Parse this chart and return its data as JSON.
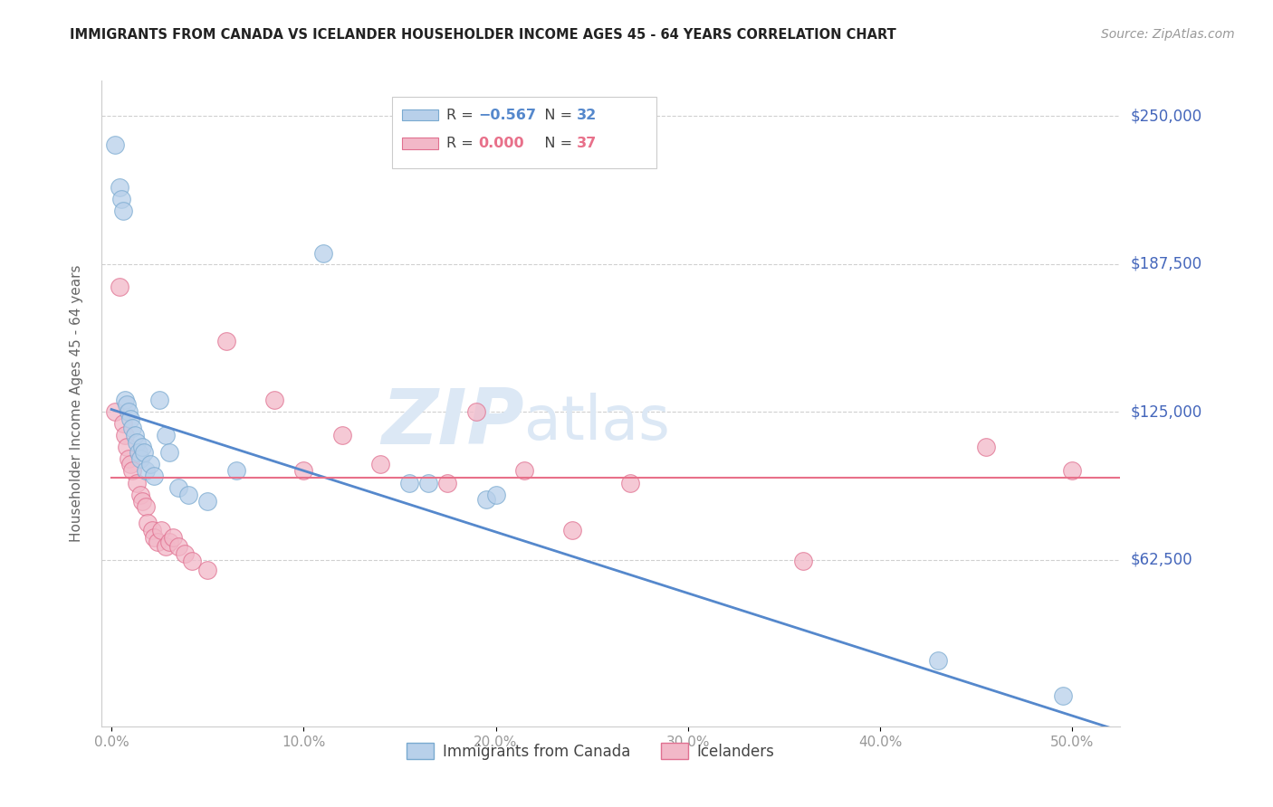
{
  "title": "IMMIGRANTS FROM CANADA VS ICELANDER HOUSEHOLDER INCOME AGES 45 - 64 YEARS CORRELATION CHART",
  "source": "Source: ZipAtlas.com",
  "xlabel_ticks": [
    "0.0%",
    "10.0%",
    "20.0%",
    "30.0%",
    "40.0%",
    "50.0%"
  ],
  "xlabel_vals": [
    0.0,
    0.1,
    0.2,
    0.3,
    0.4,
    0.5
  ],
  "ylabel_ticks": [
    "$250,000",
    "$187,500",
    "$125,000",
    "$62,500"
  ],
  "ylabel_vals": [
    250000,
    187500,
    125000,
    62500
  ],
  "ylim": [
    -8000,
    265000
  ],
  "xlim": [
    -0.005,
    0.525
  ],
  "canada_R": -0.567,
  "canada_N": 32,
  "iceland_R": 0.0,
  "iceland_N": 37,
  "canada_color": "#b8d0ea",
  "canada_edge": "#7aaad0",
  "iceland_color": "#f2b8c8",
  "iceland_edge": "#e07090",
  "line_canada_color": "#5588cc",
  "line_iceland_color": "#e8708a",
  "watermark_color": "#dce8f5",
  "grid_color": "#d0d0d0",
  "right_axis_color": "#4466bb",
  "title_color": "#222222",
  "canada_x": [
    0.002,
    0.004,
    0.005,
    0.006,
    0.007,
    0.008,
    0.009,
    0.01,
    0.011,
    0.012,
    0.013,
    0.014,
    0.015,
    0.016,
    0.017,
    0.018,
    0.02,
    0.022,
    0.025,
    0.028,
    0.03,
    0.035,
    0.04,
    0.05,
    0.065,
    0.11,
    0.155,
    0.165,
    0.195,
    0.2,
    0.43,
    0.495
  ],
  "canada_y": [
    238000,
    220000,
    215000,
    210000,
    130000,
    128000,
    125000,
    122000,
    118000,
    115000,
    112000,
    108000,
    105000,
    110000,
    108000,
    100000,
    103000,
    98000,
    130000,
    115000,
    108000,
    93000,
    90000,
    87000,
    100000,
    192000,
    95000,
    95000,
    88000,
    90000,
    20000,
    5000
  ],
  "iceland_x": [
    0.002,
    0.004,
    0.006,
    0.007,
    0.008,
    0.009,
    0.01,
    0.011,
    0.013,
    0.015,
    0.016,
    0.018,
    0.019,
    0.021,
    0.022,
    0.024,
    0.026,
    0.028,
    0.03,
    0.032,
    0.035,
    0.038,
    0.042,
    0.05,
    0.06,
    0.085,
    0.1,
    0.12,
    0.14,
    0.175,
    0.19,
    0.215,
    0.24,
    0.27,
    0.36,
    0.455,
    0.5
  ],
  "iceland_y": [
    125000,
    178000,
    120000,
    115000,
    110000,
    105000,
    103000,
    100000,
    95000,
    90000,
    87000,
    85000,
    78000,
    75000,
    72000,
    70000,
    75000,
    68000,
    70000,
    72000,
    68000,
    65000,
    62000,
    58000,
    155000,
    130000,
    100000,
    115000,
    103000,
    95000,
    125000,
    100000,
    75000,
    95000,
    62000,
    110000,
    100000
  ],
  "line_canada_x0": 0.0,
  "line_canada_y0": 126000,
  "line_canada_x1": 0.525,
  "line_canada_y1": -10000,
  "line_iceland_y": 97000,
  "marker_size": 200
}
